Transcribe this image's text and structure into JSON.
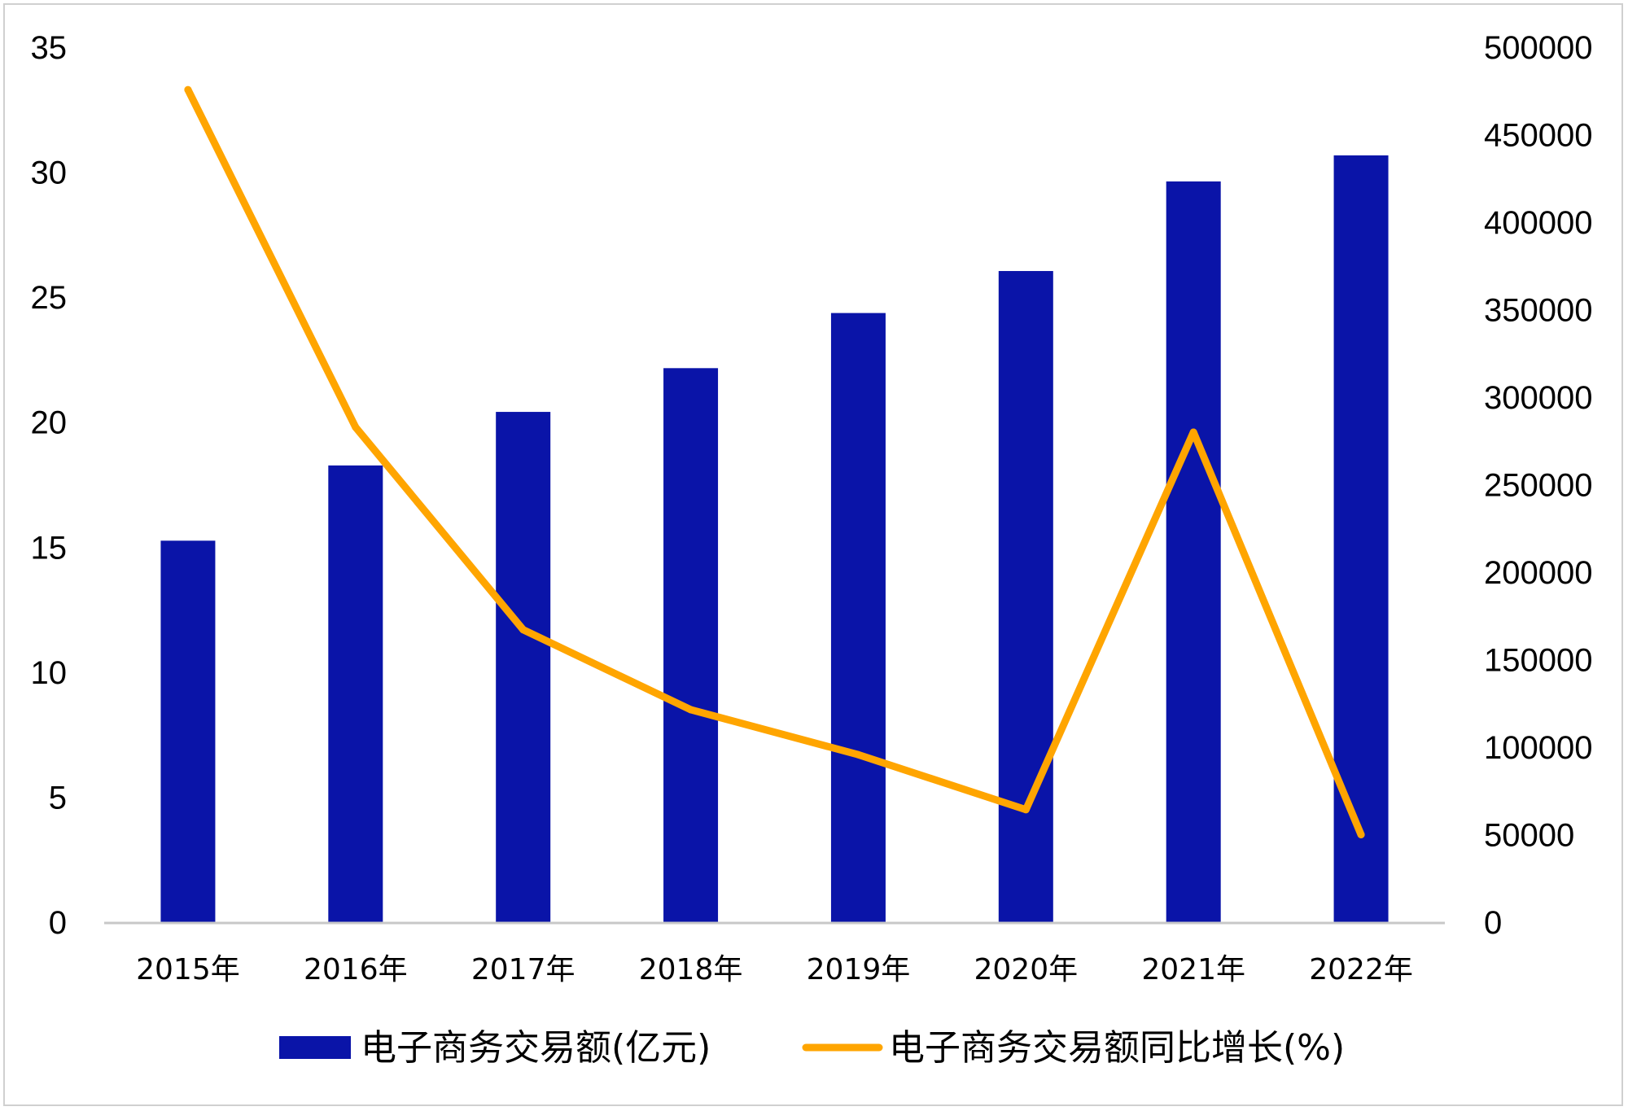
{
  "chart_data": {
    "type": "bar",
    "categories": [
      "2015年",
      "2016年",
      "2017年",
      "2018年",
      "2019年",
      "2020年",
      "2021年",
      "2022年"
    ],
    "series": [
      {
        "name": "电子商务交易额(亿元)",
        "type": "bar",
        "axis": "right",
        "color": "#0A14A8",
        "values": [
          218000,
          261000,
          291600,
          316600,
          348100,
          372100,
          423300,
          438200
        ]
      },
      {
        "name": "电子商务交易额同比增长(%)",
        "type": "line",
        "axis": "left",
        "color": "#FFA500",
        "values": [
          33.3,
          19.8,
          11.7,
          8.5,
          6.7,
          4.5,
          19.6,
          3.5
        ]
      }
    ],
    "y_left": {
      "min": 0,
      "max": 35,
      "ticks": [
        "0",
        "5",
        "10",
        "15",
        "20",
        "25",
        "30",
        "35"
      ]
    },
    "y_right": {
      "min": 0,
      "max": 500000,
      "ticks": [
        "0",
        "50000",
        "100000",
        "150000",
        "200000",
        "250000",
        "300000",
        "350000",
        "400000",
        "450000",
        "500000"
      ]
    },
    "grid": false,
    "legend_position": "bottom",
    "axis_color": "#c8c8c8"
  }
}
